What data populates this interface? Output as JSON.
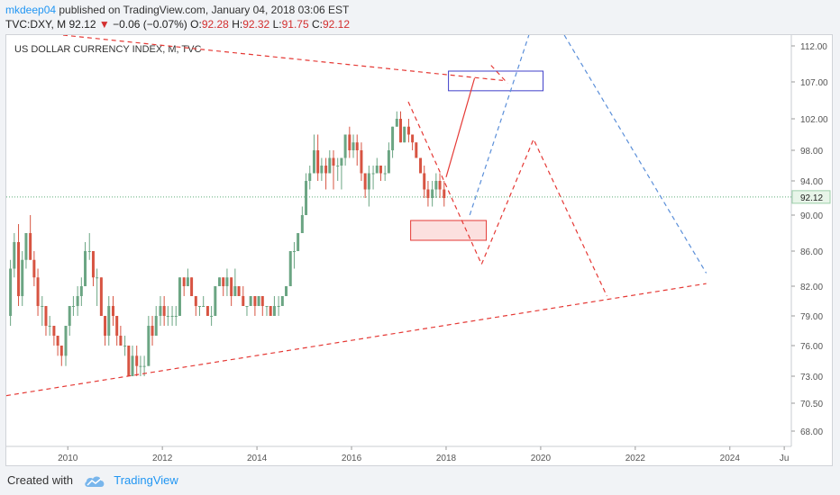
{
  "header": {
    "author": "mkdeep04",
    "published": " published on TradingView.com, January 04, 2018 03:06 EST"
  },
  "symbol_line": {
    "symbol": "TVC:DXY, M",
    "price": "92.12",
    "change_arrow": "▼",
    "change": "−0.06 (−0.07%)",
    "o_label": "O:",
    "o_value": "92.28",
    "h_label": "H:",
    "h_value": "92.32",
    "l_label": "L:",
    "l_value": "91.75",
    "c_label": "C:",
    "c_value": "92.12"
  },
  "footer": {
    "created_with": "Created with",
    "brand": "TradingView"
  },
  "colors": {
    "up": "#6ba583",
    "down": "#d75442",
    "red_line": "#e53935",
    "blue_line": "#5b8fd9",
    "last_price_bg": "#e8f5e9"
  },
  "chart_data": {
    "type": "candlestick",
    "title": "US DOLLAR CURRENCY INDEX, M, TVC",
    "ylim": [
      66.5,
      113.5
    ],
    "xlim": [
      2008.7,
      2025.3
    ],
    "y_ticks": [
      "112.00",
      "107.00",
      "102.00",
      "98.00",
      "94.00",
      "90.00",
      "86.00",
      "82.00",
      "79.00",
      "76.00",
      "73.00",
      "70.50",
      "68.00"
    ],
    "x_ticks": [
      "2010",
      "2012",
      "2014",
      "2016",
      "2018",
      "2020",
      "2022",
      "2024",
      "Ju"
    ],
    "last_price": "92.12",
    "candles": [
      [
        2008.75,
        79,
        85,
        78,
        84
      ],
      [
        2008.83,
        84,
        88,
        83,
        87
      ],
      [
        2008.92,
        87,
        89,
        80,
        81
      ],
      [
        2009.0,
        81,
        86,
        80,
        85
      ],
      [
        2009.08,
        85,
        88,
        84,
        88
      ],
      [
        2009.17,
        88,
        90,
        85,
        85
      ],
      [
        2009.25,
        85,
        86,
        82,
        83
      ],
      [
        2009.33,
        83,
        84,
        79,
        80
      ],
      [
        2009.42,
        80,
        81,
        78,
        80
      ],
      [
        2009.5,
        80,
        80,
        77,
        78
      ],
      [
        2009.58,
        78,
        79,
        77,
        78
      ],
      [
        2009.67,
        78,
        78,
        76,
        77
      ],
      [
        2009.75,
        77,
        77,
        75,
        76
      ],
      [
        2009.83,
        76,
        76,
        74,
        75
      ],
      [
        2009.92,
        75,
        78,
        74,
        78
      ],
      [
        2010.0,
        78,
        80,
        77,
        80
      ],
      [
        2010.08,
        80,
        81,
        79,
        80
      ],
      [
        2010.17,
        80,
        82,
        79,
        81
      ],
      [
        2010.25,
        81,
        83,
        80,
        82
      ],
      [
        2010.33,
        82,
        87,
        82,
        86
      ],
      [
        2010.42,
        86,
        88,
        85,
        86
      ],
      [
        2010.5,
        86,
        86,
        82,
        83
      ],
      [
        2010.58,
        83,
        84,
        80,
        83
      ],
      [
        2010.67,
        83,
        83,
        79,
        79
      ],
      [
        2010.75,
        79,
        79,
        76,
        77
      ],
      [
        2010.83,
        77,
        81,
        76,
        80
      ],
      [
        2010.92,
        80,
        81,
        78,
        79
      ],
      [
        2011.0,
        79,
        79,
        76,
        77
      ],
      [
        2011.08,
        77,
        78,
        76,
        76
      ],
      [
        2011.17,
        76,
        77,
        75,
        76
      ],
      [
        2011.25,
        76,
        76,
        73,
        73
      ],
      [
        2011.33,
        73,
        76,
        73,
        75
      ],
      [
        2011.42,
        75,
        76,
        73,
        74
      ],
      [
        2011.5,
        74,
        75,
        73,
        74
      ],
      [
        2011.58,
        74,
        75,
        73,
        74
      ],
      [
        2011.67,
        74,
        79,
        74,
        78
      ],
      [
        2011.75,
        78,
        79,
        76,
        77
      ],
      [
        2011.83,
        77,
        80,
        77,
        79
      ],
      [
        2011.92,
        79,
        81,
        78,
        80
      ],
      [
        2012.0,
        80,
        81,
        78,
        79
      ],
      [
        2012.08,
        79,
        80,
        78,
        79
      ],
      [
        2012.17,
        79,
        80,
        78,
        79
      ],
      [
        2012.25,
        79,
        80,
        78,
        79
      ],
      [
        2012.33,
        79,
        83,
        79,
        83
      ],
      [
        2012.42,
        83,
        83,
        81,
        82
      ],
      [
        2012.5,
        82,
        84,
        82,
        83
      ],
      [
        2012.58,
        83,
        83,
        81,
        81
      ],
      [
        2012.67,
        81,
        81,
        79,
        80
      ],
      [
        2012.75,
        80,
        80,
        79,
        80
      ],
      [
        2012.83,
        80,
        81,
        80,
        80
      ],
      [
        2012.92,
        80,
        80,
        79,
        79
      ],
      [
        2013.0,
        79,
        80,
        78,
        79
      ],
      [
        2013.08,
        79,
        82,
        79,
        82
      ],
      [
        2013.17,
        82,
        83,
        82,
        83
      ],
      [
        2013.25,
        83,
        83,
        81,
        82
      ],
      [
        2013.33,
        82,
        84,
        81,
        83
      ],
      [
        2013.42,
        83,
        83,
        80,
        81
      ],
      [
        2013.5,
        81,
        84,
        81,
        82
      ],
      [
        2013.58,
        82,
        82,
        81,
        81
      ],
      [
        2013.67,
        81,
        82,
        80,
        80
      ],
      [
        2013.75,
        80,
        80,
        79,
        80
      ],
      [
        2013.83,
        80,
        81,
        80,
        81
      ],
      [
        2013.92,
        81,
        81,
        79,
        80
      ],
      [
        2014.0,
        80,
        81,
        80,
        81
      ],
      [
        2014.08,
        81,
        81,
        79,
        80
      ],
      [
        2014.17,
        80,
        80,
        79,
        80
      ],
      [
        2014.25,
        80,
        80,
        79,
        79
      ],
      [
        2014.33,
        79,
        81,
        79,
        80
      ],
      [
        2014.42,
        80,
        81,
        79,
        80
      ],
      [
        2014.5,
        80,
        81,
        80,
        81
      ],
      [
        2014.58,
        81,
        82,
        81,
        82
      ],
      [
        2014.67,
        82,
        86,
        82,
        86
      ],
      [
        2014.75,
        86,
        87,
        84,
        86
      ],
      [
        2014.83,
        86,
        88,
        86,
        88
      ],
      [
        2014.92,
        88,
        91,
        88,
        90
      ],
      [
        2015.0,
        90,
        95,
        90,
        94
      ],
      [
        2015.08,
        94,
        96,
        93,
        95
      ],
      [
        2015.17,
        95,
        100,
        95,
        98
      ],
      [
        2015.25,
        98,
        100,
        94,
        95
      ],
      [
        2015.33,
        95,
        97,
        94,
        96
      ],
      [
        2015.42,
        96,
        97,
        93,
        95
      ],
      [
        2015.5,
        95,
        98,
        95,
        97
      ],
      [
        2015.58,
        97,
        98,
        93,
        96
      ],
      [
        2015.67,
        96,
        97,
        94,
        96
      ],
      [
        2015.75,
        96,
        97,
        93,
        97
      ],
      [
        2015.83,
        97,
        100,
        96,
        100
      ],
      [
        2015.92,
        100,
        101,
        97,
        98
      ],
      [
        2016.0,
        98,
        100,
        97,
        99
      ],
      [
        2016.08,
        99,
        100,
        96,
        98
      ],
      [
        2016.17,
        98,
        99,
        94,
        95
      ],
      [
        2016.25,
        95,
        95,
        92,
        93
      ],
      [
        2016.33,
        93,
        96,
        91,
        95
      ],
      [
        2016.42,
        95,
        96,
        93,
        95
      ],
      [
        2016.5,
        95,
        97,
        95,
        96
      ],
      [
        2016.58,
        96,
        96,
        94,
        95
      ],
      [
        2016.67,
        95,
        96,
        94,
        95
      ],
      [
        2016.75,
        95,
        99,
        95,
        98
      ],
      [
        2016.83,
        98,
        101,
        97,
        101
      ],
      [
        2016.92,
        101,
        103,
        101,
        102
      ],
      [
        2017.0,
        102,
        103,
        99,
        99
      ],
      [
        2017.08,
        99,
        101,
        99,
        101
      ],
      [
        2017.17,
        101,
        102,
        99,
        100
      ],
      [
        2017.25,
        100,
        100,
        98,
        99
      ],
      [
        2017.33,
        99,
        99,
        97,
        97
      ],
      [
        2017.42,
        97,
        97,
        95,
        95
      ],
      [
        2017.5,
        95,
        96,
        92,
        93
      ],
      [
        2017.58,
        93,
        94,
        91,
        92
      ],
      [
        2017.67,
        92,
        94,
        91,
        93
      ],
      [
        2017.75,
        93,
        95,
        92,
        94
      ],
      [
        2017.83,
        94,
        95,
        92,
        93
      ],
      [
        2017.92,
        93,
        94,
        91,
        92
      ]
    ],
    "trendlines": [
      {
        "name": "upper-resistance",
        "color": "red",
        "points": [
          [
            2009.9,
            113.5
          ],
          [
            2019.2,
            107.2
          ]
        ]
      },
      {
        "name": "lower-support",
        "color": "red",
        "points": [
          [
            2008.7,
            71.2
          ],
          [
            2023.5,
            82.3
          ]
        ]
      },
      {
        "name": "projection-up-solid",
        "color": "red",
        "dashed": false,
        "points": [
          [
            2018.0,
            94.5
          ],
          [
            2018.6,
            107.5
          ]
        ]
      },
      {
        "name": "projection-zigzag-red",
        "color": "red",
        "points": [
          [
            2017.2,
            104.3
          ],
          [
            2018.75,
            84.5
          ],
          [
            2019.85,
            99.4
          ],
          [
            2021.4,
            81.0
          ]
        ]
      },
      {
        "name": "projection-down-red",
        "color": "red",
        "points": [
          [
            2018.95,
            109.3
          ],
          [
            2019.3,
            106.8
          ]
        ]
      },
      {
        "name": "projection-blue-up",
        "color": "blue",
        "points": [
          [
            2018.5,
            90.0
          ],
          [
            2019.75,
            113.5
          ]
        ]
      },
      {
        "name": "projection-blue-down",
        "color": "blue",
        "points": [
          [
            2020.5,
            113.5
          ],
          [
            2023.5,
            83.5
          ]
        ]
      }
    ],
    "boxes": [
      {
        "name": "target-box",
        "color": "blue",
        "x": [
          2018.05,
          2020.05
        ],
        "y": [
          105.8,
          108.5
        ]
      },
      {
        "name": "support-box",
        "color": "red",
        "x": [
          2017.25,
          2018.85
        ],
        "y": [
          87.2,
          89.4
        ]
      }
    ]
  }
}
